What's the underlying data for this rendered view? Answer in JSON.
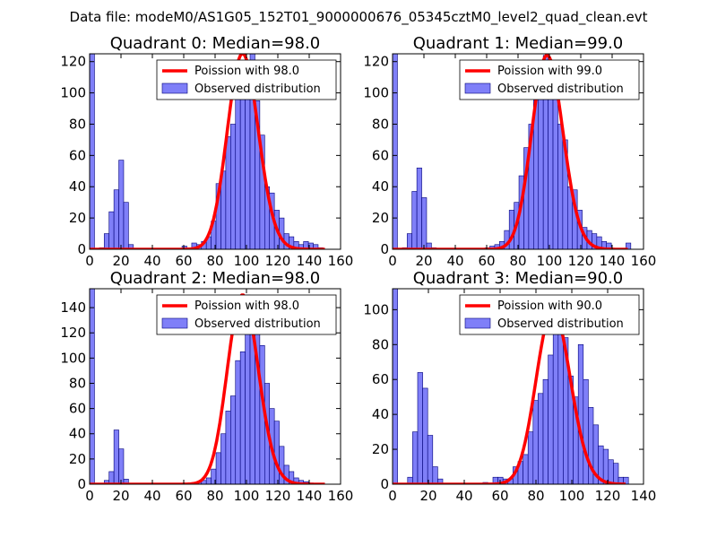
{
  "figure": {
    "suptitle": "Data file: modeM0/AS1G05_152T01_9000000676_05345cztM0_level2_quad_clean.evt",
    "colors": {
      "bar_fill": "#7f7ff8",
      "bar_edge": "#00007a",
      "curve": "#ff0000"
    }
  },
  "chart_data": [
    {
      "type": "bar",
      "title": "Quadrant 0: Median=98.0",
      "xlim": [
        0,
        160
      ],
      "ylim": [
        0,
        125
      ],
      "xticks": [
        "0",
        "20",
        "40",
        "60",
        "80",
        "100",
        "120",
        "140",
        "160"
      ],
      "yticks": [
        "0",
        "20",
        "40",
        "60",
        "80",
        "100",
        "120"
      ],
      "bin_width": 3.1,
      "bins": [
        0,
        3.1,
        6.2,
        9.3,
        12.4,
        15.5,
        18.6,
        21.7,
        24.8,
        27.9,
        31,
        34.1,
        37.2,
        40.3,
        43.4,
        46.5,
        49.6,
        52.7,
        55.8,
        58.9,
        62,
        65.1,
        68.2,
        71.3,
        74.4,
        77.5,
        80.6,
        83.7,
        86.8,
        89.9,
        93,
        96.1,
        99.2,
        102.3,
        105.4,
        108.5,
        111.6,
        114.7,
        117.8,
        120.9,
        124,
        127.1,
        130.2,
        133.3,
        136.4,
        139.5,
        142.6,
        145.7
      ],
      "counts": [
        125,
        0,
        1,
        10,
        24,
        38,
        57,
        30,
        3,
        0,
        0,
        0,
        0,
        0,
        0,
        0,
        0,
        0,
        0,
        2,
        0,
        4,
        3,
        5,
        8,
        18,
        42,
        50,
        72,
        80,
        100,
        105,
        115,
        125,
        95,
        73,
        40,
        36,
        25,
        20,
        10,
        8,
        5,
        3,
        5,
        4,
        3,
        1
      ],
      "curve": {
        "label": "Poission with 98.0",
        "mu": 98.0
      },
      "legend": {
        "curve_label": "Poission with 98.0",
        "hist_label": "Observed distribution",
        "loc": "upper right"
      }
    },
    {
      "type": "bar",
      "title": "Quadrant 1: Median=99.0",
      "xlim": [
        0,
        160
      ],
      "ylim": [
        0,
        125
      ],
      "xticks": [
        "0",
        "20",
        "40",
        "60",
        "80",
        "100",
        "120",
        "140",
        "160"
      ],
      "yticks": [
        "0",
        "20",
        "40",
        "60",
        "80",
        "100",
        "120"
      ],
      "bin_width": 3.1,
      "bins": [
        0,
        3.1,
        6.2,
        9.3,
        12.4,
        15.5,
        18.6,
        21.7,
        24.8,
        27.9,
        31,
        34.1,
        37.2,
        40.3,
        43.4,
        46.5,
        49.6,
        52.7,
        55.8,
        58.9,
        62,
        65.1,
        68.2,
        71.3,
        74.4,
        77.5,
        80.6,
        83.7,
        86.8,
        89.9,
        93,
        96.1,
        99.2,
        102.3,
        105.4,
        108.5,
        111.6,
        114.7,
        117.8,
        120.9,
        124,
        127.1,
        130.2,
        133.3,
        136.4,
        139.5,
        142.6,
        145.7,
        148.8
      ],
      "counts": [
        125,
        0,
        1,
        10,
        37,
        52,
        33,
        4,
        1,
        0,
        0,
        0,
        0,
        0,
        0,
        0,
        0,
        0,
        0,
        1,
        2,
        3,
        5,
        12,
        25,
        30,
        47,
        65,
        80,
        100,
        114,
        124,
        116,
        105,
        80,
        70,
        40,
        38,
        25,
        14,
        12,
        10,
        8,
        5,
        4,
        0,
        0,
        0,
        4
      ],
      "curve": {
        "label": "Poission with 99.0",
        "mu": 99.0
      },
      "legend": {
        "curve_label": "Poission with 99.0",
        "hist_label": "Observed distribution",
        "loc": "upper right"
      }
    },
    {
      "type": "bar",
      "title": "Quadrant 2: Median=98.0",
      "xlim": [
        0,
        160
      ],
      "ylim": [
        0,
        155
      ],
      "xticks": [
        "0",
        "20",
        "40",
        "60",
        "80",
        "100",
        "120",
        "140",
        "160"
      ],
      "yticks": [
        "0",
        "20",
        "40",
        "60",
        "80",
        "100",
        "120",
        "140"
      ],
      "bin_width": 3.1,
      "bins": [
        0,
        3.1,
        6.2,
        9.3,
        12.4,
        15.5,
        18.6,
        21.7,
        24.8,
        27.9,
        31,
        34.1,
        37.2,
        40.3,
        43.4,
        46.5,
        49.6,
        52.7,
        55.8,
        58.9,
        62,
        65.1,
        68.2,
        71.3,
        74.4,
        77.5,
        80.6,
        83.7,
        86.8,
        89.9,
        93,
        96.1,
        99.2,
        102.3,
        105.4,
        108.5,
        111.6,
        114.7,
        117.8,
        120.9,
        124,
        127.1,
        130.2,
        133.3,
        136.4,
        139.5,
        142.6,
        145.7
      ],
      "counts": [
        155,
        0,
        0,
        3,
        10,
        43,
        28,
        4,
        0,
        0,
        0,
        0,
        0,
        0,
        0,
        0,
        0,
        0,
        0,
        0,
        0,
        0,
        2,
        3,
        5,
        12,
        25,
        40,
        58,
        70,
        98,
        105,
        150,
        140,
        130,
        110,
        80,
        60,
        50,
        30,
        15,
        10,
        5,
        3,
        2,
        1,
        0,
        0
      ],
      "curve": {
        "label": "Poission with 98.0",
        "mu": 98.0
      },
      "legend": {
        "curve_label": "Poission with 98.0",
        "hist_label": "Observed distribution",
        "loc": "upper right"
      }
    },
    {
      "type": "bar",
      "title": "Quadrant 3: Median=90.0",
      "xlim": [
        0,
        140
      ],
      "ylim": [
        0,
        112
      ],
      "xticks": [
        "0",
        "20",
        "40",
        "60",
        "80",
        "100",
        "120",
        "140"
      ],
      "yticks": [
        "0",
        "20",
        "40",
        "60",
        "80",
        "100"
      ],
      "bin_width": 2.8,
      "bins": [
        0,
        2.8,
        5.6,
        8.4,
        11.2,
        14,
        16.8,
        19.6,
        22.4,
        25.2,
        28,
        30.8,
        33.6,
        36.4,
        39.2,
        42,
        44.8,
        47.6,
        50.4,
        53.2,
        56,
        58.8,
        61.6,
        64.4,
        67.2,
        70,
        72.8,
        75.6,
        78.4,
        81.2,
        84,
        86.8,
        89.6,
        92.4,
        95.2,
        98,
        100.8,
        103.6,
        106.4,
        109.2,
        112,
        114.8,
        117.6,
        120.4,
        123.2,
        126,
        128.8
      ],
      "counts": [
        112,
        0,
        0,
        4,
        30,
        64,
        55,
        28,
        10,
        3,
        0,
        0,
        0,
        0,
        0,
        0,
        0,
        0,
        1,
        0,
        4,
        4,
        3,
        3,
        10,
        13,
        17,
        30,
        48,
        52,
        60,
        74,
        90,
        100,
        84,
        62,
        50,
        80,
        60,
        44,
        34,
        22,
        20,
        14,
        12,
        4,
        4
      ],
      "curve": {
        "label": "Poission with 90.0",
        "mu": 90.0
      },
      "legend": {
        "curve_label": "Poission with 90.0",
        "hist_label": "Observed distribution",
        "loc": "upper right"
      }
    }
  ]
}
